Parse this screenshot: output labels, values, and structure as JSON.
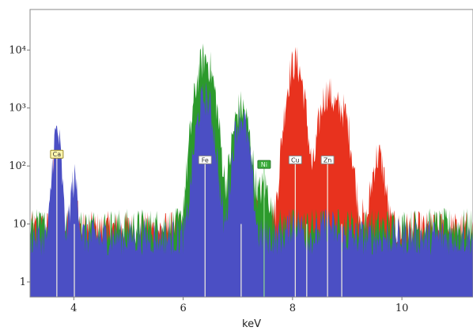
{
  "chart_data": {
    "type": "area",
    "xlabel": "keV",
    "ylabel": "",
    "xlim": [
      3.2,
      11.3
    ],
    "ylim": [
      0.55,
      50000
    ],
    "y_scale": "log",
    "x_ticks": [
      {
        "value": 4,
        "label": "4"
      },
      {
        "value": 6,
        "label": "6"
      },
      {
        "value": 8,
        "label": "8"
      },
      {
        "value": 10,
        "label": "10"
      }
    ],
    "y_ticks": [
      {
        "value": 1,
        "label": "1"
      },
      {
        "value": 10,
        "label": "10"
      },
      {
        "value": 100,
        "label": "10²"
      },
      {
        "value": 1000,
        "label": "10³"
      },
      {
        "value": 10000,
        "label": "10⁴"
      }
    ],
    "grid": false,
    "series": [
      {
        "color": "#e8321e",
        "baseline": 8,
        "peaks": [
          {
            "x": 3.69,
            "height": 150,
            "width": 0.05
          },
          {
            "x": 4.01,
            "height": 25,
            "width": 0.05
          },
          {
            "x": 6.4,
            "height": 340,
            "width": 0.09
          },
          {
            "x": 7.06,
            "height": 270,
            "width": 0.09
          },
          {
            "x": 7.48,
            "height": 25,
            "width": 0.08
          },
          {
            "x": 8.05,
            "height": 6000,
            "width": 0.1
          },
          {
            "x": 8.64,
            "height": 1800,
            "width": 0.1
          },
          {
            "x": 8.9,
            "height": 900,
            "width": 0.1
          },
          {
            "x": 9.57,
            "height": 140,
            "width": 0.08
          }
        ]
      },
      {
        "color": "#2c9a2c",
        "baseline": 9,
        "peaks": [
          {
            "x": 3.69,
            "height": 80,
            "width": 0.05
          },
          {
            "x": 6.4,
            "height": 7000,
            "width": 0.11
          },
          {
            "x": 7.06,
            "height": 1000,
            "width": 0.1
          },
          {
            "x": 7.48,
            "height": 30,
            "width": 0.08
          }
        ]
      },
      {
        "color": "#4b4fc4",
        "baseline": 6,
        "peaks": [
          {
            "x": 3.69,
            "height": 380,
            "width": 0.05
          },
          {
            "x": 4.01,
            "height": 50,
            "width": 0.05
          },
          {
            "x": 6.4,
            "height": 1500,
            "width": 0.1
          },
          {
            "x": 7.06,
            "height": 700,
            "width": 0.09
          },
          {
            "x": 8.05,
            "height": 5,
            "width": 0.1
          },
          {
            "x": 8.64,
            "height": 4,
            "width": 0.1
          }
        ]
      }
    ],
    "annotations": [
      {
        "label": "Ca",
        "x": 3.69,
        "line_top": 150,
        "fill": "#fff7b0",
        "stroke": "#9a8a2a",
        "text_color": "#333333"
      },
      {
        "label": "Fe",
        "x": 6.4,
        "line_top": 120,
        "fill": "#ffffff",
        "stroke": "#888888",
        "text_color": "#333333"
      },
      {
        "label": "Ni",
        "x": 7.48,
        "line_top": 100,
        "fill": "#3aaa3a",
        "stroke": "#2c7a2c",
        "text_color": "#e8ffe8"
      },
      {
        "label": "Cu",
        "x": 8.05,
        "line_top": 120,
        "fill": "#ffffff",
        "stroke": "#888888",
        "text_color": "#333333"
      },
      {
        "label": "Zn",
        "x": 8.64,
        "line_top": 120,
        "fill": "#ffffff",
        "stroke": "#888888",
        "text_color": "#333333"
      }
    ],
    "extra_lines": [
      4.01,
      7.06,
      8.26,
      8.9
    ]
  }
}
